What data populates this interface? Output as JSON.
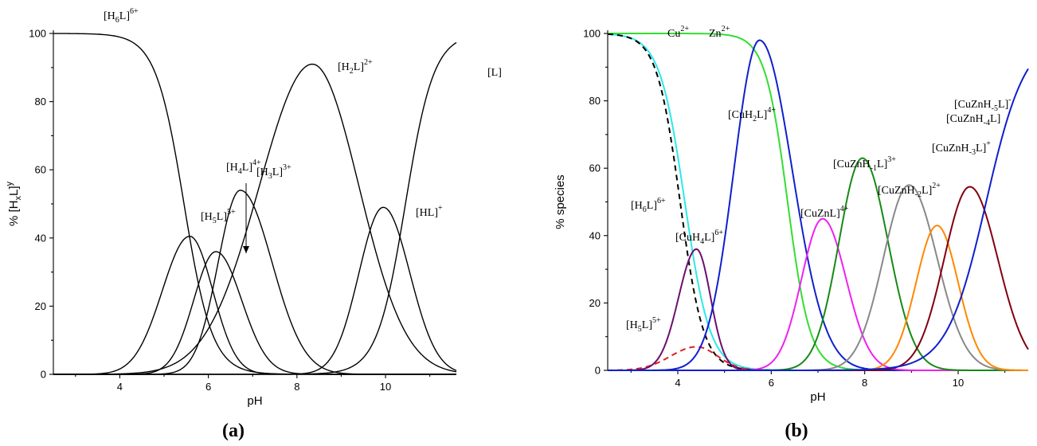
{
  "chart_data": [
    {
      "panel": "(a)",
      "type": "line",
      "xlabel": "pH",
      "ylabel": "% [HxL]y",
      "xlim": [
        2.5,
        11.6
      ],
      "ylim": [
        0,
        100
      ],
      "xticks": [
        "4",
        "6",
        "8",
        "10"
      ],
      "yticks": [
        "0",
        "20",
        "40",
        "60",
        "80",
        "100"
      ],
      "series_kind": "bell",
      "series": [
        {
          "label": "[H6L]6+",
          "label_parts": [
            [
              "[H",
              ""
            ],
            [
              "6",
              "sub"
            ],
            [
              "L]",
              ""
            ],
            [
              "6+",
              "sup"
            ]
          ],
          "shape": "falling",
          "mid": 5.45,
          "width": 0.32,
          "color": "#000000"
        },
        {
          "label": "[H5L]5+",
          "label_parts": [
            [
              "[H",
              ""
            ],
            [
              "5",
              "sub"
            ],
            [
              "L]",
              ""
            ],
            [
              "5+",
              "sup"
            ]
          ],
          "peak": 5.58,
          "height": 40.5,
          "left_w": 0.62,
          "right_w": 0.52,
          "color": "#000000"
        },
        {
          "label": "[H4L]4+",
          "label_parts": [
            [
              "[H",
              ""
            ],
            [
              "4",
              "sub"
            ],
            [
              "L]",
              ""
            ],
            [
              "4+",
              "sup"
            ]
          ],
          "peak": 6.17,
          "height": 36,
          "left_w": 0.5,
          "right_w": 0.58,
          "color": "#000000"
        },
        {
          "label": "[H3L]3+",
          "label_parts": [
            [
              "[H",
              ""
            ],
            [
              "3",
              "sub"
            ],
            [
              "L]",
              ""
            ],
            [
              "3+",
              "sup"
            ]
          ],
          "peak": 6.72,
          "height": 54,
          "left_w": 0.5,
          "right_w": 0.72,
          "color": "#000000"
        },
        {
          "label": "[H2L]2+",
          "label_parts": [
            [
              "[H",
              ""
            ],
            [
              "2",
              "sub"
            ],
            [
              "L]",
              ""
            ],
            [
              "2+",
              "sup"
            ]
          ],
          "peak": 8.35,
          "height": 91,
          "left_w": 1.2,
          "right_w": 1.05,
          "color": "#000000"
        },
        {
          "label": "[HL]+",
          "label_parts": [
            [
              "[HL]",
              ""
            ],
            [
              "+",
              "sup"
            ]
          ],
          "peak": 9.95,
          "height": 49,
          "left_w": 0.55,
          "right_w": 0.6,
          "color": "#000000"
        },
        {
          "label": "[L]",
          "label_parts": [
            [
              "[L]",
              ""
            ]
          ],
          "shape": "rising",
          "mid": 10.45,
          "width": 0.32,
          "color": "#000000"
        }
      ],
      "annotations": [
        {
          "label_index": 0
        },
        {
          "label_index": 1
        },
        {
          "label_index": 2,
          "arrow": true
        },
        {
          "label_index": 3
        },
        {
          "label_index": 4
        },
        {
          "label_index": 5
        },
        {
          "label_index": 6
        }
      ]
    },
    {
      "panel": "(b)",
      "type": "line",
      "xlabel": "pH",
      "ylabel": "% species",
      "xlim": [
        2.5,
        11.5
      ],
      "ylim": [
        0,
        100
      ],
      "xticks": [
        "4",
        "6",
        "8",
        "10"
      ],
      "yticks": [
        "0",
        "20",
        "40",
        "60",
        "80",
        "100"
      ],
      "series": [
        {
          "label": "Cu2+",
          "label_parts": [
            [
              "Cu",
              ""
            ],
            [
              "2+",
              "sup"
            ]
          ],
          "shape": "falling",
          "mid": 4.15,
          "width": 0.27,
          "color": "#2ee8e8"
        },
        {
          "label": "Zn2+",
          "label_parts": [
            [
              "Zn",
              ""
            ],
            [
              "2+",
              "sup"
            ]
          ],
          "shape": "falling",
          "mid": 6.35,
          "width": 0.24,
          "color": "#33dd33"
        },
        {
          "label": "[H6L]6+",
          "label_parts": [
            [
              "[H",
              ""
            ],
            [
              "6",
              "sub"
            ],
            [
              "L]",
              ""
            ],
            [
              "6+",
              "sup"
            ]
          ],
          "shape": "falling",
          "mid": 4.05,
          "width": 0.25,
          "dashed": true,
          "color": "#000000"
        },
        {
          "label": "[H5L]5+",
          "label_parts": [
            [
              "[H",
              ""
            ],
            [
              "5",
              "sub"
            ],
            [
              "L]",
              ""
            ],
            [
              "5+",
              "sup"
            ]
          ],
          "peak": 4.4,
          "height": 7,
          "left_w": 0.55,
          "right_w": 0.45,
          "dashed": true,
          "color": "#e02020"
        },
        {
          "label": "[CuH4L]6+",
          "label_parts": [
            [
              "[CuH",
              ""
            ],
            [
              "4",
              "sub"
            ],
            [
              "L]",
              ""
            ],
            [
              "6+",
              "sup"
            ]
          ],
          "peak": 4.4,
          "height": 36,
          "left_w": 0.38,
          "right_w": 0.3,
          "color": "#6a1070"
        },
        {
          "label": "[CuH2L]4+",
          "label_parts": [
            [
              "[CuH",
              ""
            ],
            [
              "2",
              "sub"
            ],
            [
              "L]",
              ""
            ],
            [
              "4+",
              "sup"
            ]
          ],
          "peak": 5.75,
          "height": 98,
          "left_w": 0.55,
          "right_w": 0.7,
          "color": "#1020cc"
        },
        {
          "label": "[CuZnL]4+",
          "label_parts": [
            [
              "[CuZnL]",
              ""
            ],
            [
              "4+",
              "sup"
            ]
          ],
          "peak": 7.1,
          "height": 45,
          "left_w": 0.45,
          "right_w": 0.5,
          "color": "#ee22ee"
        },
        {
          "label": "[CuZnH-1L]3+",
          "label_parts": [
            [
              "[CuZnH",
              ""
            ],
            [
              "-1",
              "sub"
            ],
            [
              "L]",
              ""
            ],
            [
              "3+",
              "sup"
            ]
          ],
          "peak": 7.95,
          "height": 63,
          "left_w": 0.5,
          "right_w": 0.55,
          "color": "#158a15"
        },
        {
          "label": "[CuZnH-2L]2+",
          "label_parts": [
            [
              "[CuZnH",
              ""
            ],
            [
              "-2",
              "sub"
            ],
            [
              "L]",
              ""
            ],
            [
              "2+",
              "sup"
            ]
          ],
          "peak": 8.95,
          "height": 55,
          "left_w": 0.55,
          "right_w": 0.6,
          "color": "#888888"
        },
        {
          "label": "[CuZnH-3L]+",
          "label_parts": [
            [
              "[CuZnH",
              ""
            ],
            [
              "-3",
              "sub"
            ],
            [
              "L]",
              ""
            ],
            [
              "+",
              "sup"
            ]
          ],
          "peak": 9.55,
          "height": 43,
          "left_w": 0.45,
          "right_w": 0.45,
          "color": "#ff8800"
        },
        {
          "label": "[CuZnH-4L]",
          "label_parts": [
            [
              "[CuZnH",
              ""
            ],
            [
              "-4",
              "sub"
            ],
            [
              "L]",
              ""
            ]
          ],
          "peak": 10.25,
          "height": 54.5,
          "left_w": 0.55,
          "right_w": 0.6,
          "color": "#800010"
        },
        {
          "label": "[CuZnH-5L]-",
          "label_parts": [
            [
              "[CuZnH",
              ""
            ],
            [
              "-5",
              "sub"
            ],
            [
              "L]",
              ""
            ],
            [
              "-",
              "sup"
            ]
          ],
          "shape": "rising",
          "mid": 10.6,
          "width": 0.42,
          "color": "#1020cc"
        }
      ]
    }
  ]
}
